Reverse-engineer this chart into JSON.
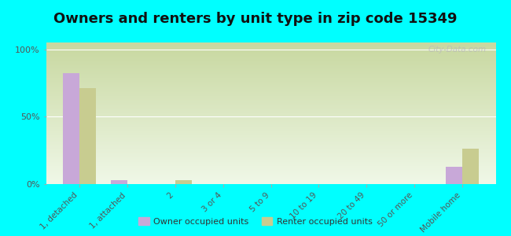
{
  "title": "Owners and renters by unit type in zip code 15349",
  "categories": [
    "1, detached",
    "1, attached",
    "2",
    "3 or 4",
    "5 to 9",
    "10 to 19",
    "20 to 49",
    "50 or more",
    "Mobile home"
  ],
  "owner_values": [
    82,
    3,
    0,
    0,
    0,
    0,
    0,
    0,
    13
  ],
  "renter_values": [
    71,
    0,
    3,
    0,
    0,
    0,
    0,
    0,
    26
  ],
  "owner_color": "#c8a8d8",
  "renter_color": "#c8cc90",
  "background_color": "#00ffff",
  "grad_top": "#c8d8a0",
  "grad_bottom": "#f0f8e8",
  "yticks": [
    0,
    50,
    100
  ],
  "ylim": [
    0,
    105
  ],
  "watermark": "City-Data.com",
  "legend_owner": "Owner occupied units",
  "legend_renter": "Renter occupied units",
  "title_fontsize": 13,
  "bar_width": 0.35
}
